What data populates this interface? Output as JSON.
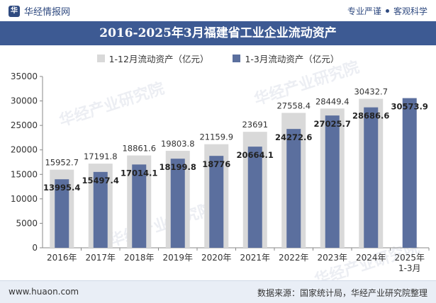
{
  "header": {
    "brand_name": "华经情报网",
    "tagline_left": "专业严谨",
    "tagline_right": "客观科学"
  },
  "icons": {
    "brand": "brand-logo-icon",
    "separator": "dot-separator-icon"
  },
  "colors": {
    "title_bg": "#3d5a93",
    "annual_bar": "#d9d9d9",
    "q1_bar": "#5b6f9e",
    "footer_bg": "#e9eef6"
  },
  "chart_data": {
    "type": "bar",
    "title": "2016-2025年3月福建省工业企业流动资产",
    "categories": [
      "2016年",
      "2017年",
      "2018年",
      "2019年",
      "2020年",
      "2021年",
      "2022年",
      "2023年",
      "2024年",
      "2025年\n1-3月"
    ],
    "series": [
      {
        "name": "1-12月流动资产（亿元）",
        "values": [
          15952.7,
          17191.8,
          18861.6,
          19803.8,
          21159.9,
          23691,
          27558.4,
          28449.4,
          30432.7,
          null
        ],
        "labels": [
          "15952.7",
          "17191.8",
          "18861.6",
          "19803.8",
          "21159.9",
          "23691",
          "27558.4",
          "28449.4",
          "30432.7",
          ""
        ]
      },
      {
        "name": "1-3月流动资产（亿元）",
        "values": [
          13995.4,
          15497.4,
          17014.1,
          18199.8,
          18776,
          20664.1,
          24272.6,
          27025.7,
          28686.6,
          30573.9
        ],
        "labels": [
          "13995.4",
          "15497.4",
          "17014.1",
          "18199.8",
          "18776",
          "20664.1",
          "24272.6",
          "27025.7",
          "28686.6",
          "30573.9"
        ]
      }
    ],
    "ylim": [
      0,
      35000
    ],
    "yticks": [
      0,
      5000,
      10000,
      15000,
      20000,
      25000,
      30000,
      35000
    ],
    "ytick_labels": [
      "0",
      "5000",
      "10000",
      "15000",
      "20000",
      "25000",
      "30000",
      "35000"
    ],
    "grid": false,
    "legend": "top-center"
  },
  "watermark": "华经产业研究院",
  "footer": {
    "website": "www.huaon.com",
    "source": "数据来源：国家统计局，华经产业研究院整理"
  }
}
